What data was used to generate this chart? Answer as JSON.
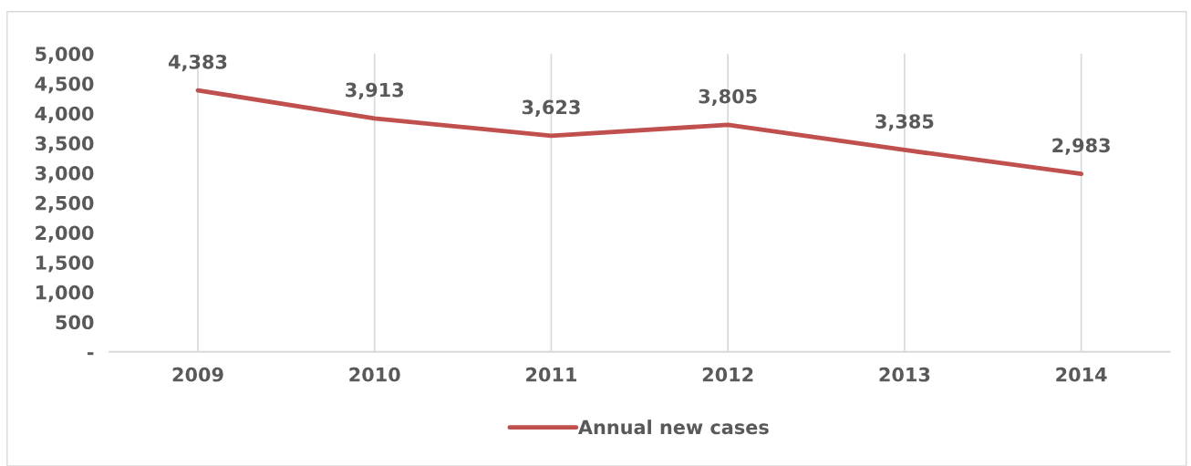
{
  "chart_data": {
    "type": "line",
    "categories": [
      "2009",
      "2010",
      "2011",
      "2012",
      "2013",
      "2014"
    ],
    "series": [
      {
        "name": "Annual new cases",
        "color": "#c0504d",
        "values": [
          4383,
          3913,
          3623,
          3805,
          3385,
          2983
        ],
        "value_labels": [
          "4,383",
          "3,913",
          "3,623",
          "3,805",
          "3,385",
          "2,983"
        ]
      }
    ],
    "ylim": [
      0,
      5000
    ],
    "yticks": [
      {
        "value": 0,
        "label": "-"
      },
      {
        "value": 500,
        "label": "500"
      },
      {
        "value": 1000,
        "label": "1,000"
      },
      {
        "value": 1500,
        "label": "1,500"
      },
      {
        "value": 2000,
        "label": "2,000"
      },
      {
        "value": 2500,
        "label": "2,500"
      },
      {
        "value": 3000,
        "label": "3,000"
      },
      {
        "value": 3500,
        "label": "3,500"
      },
      {
        "value": 4000,
        "label": "4,000"
      },
      {
        "value": 4500,
        "label": "4,500"
      },
      {
        "value": 5000,
        "label": "5,000"
      }
    ],
    "grid": "x",
    "legend": "bottom",
    "marker": "none",
    "line_style": "solid"
  }
}
